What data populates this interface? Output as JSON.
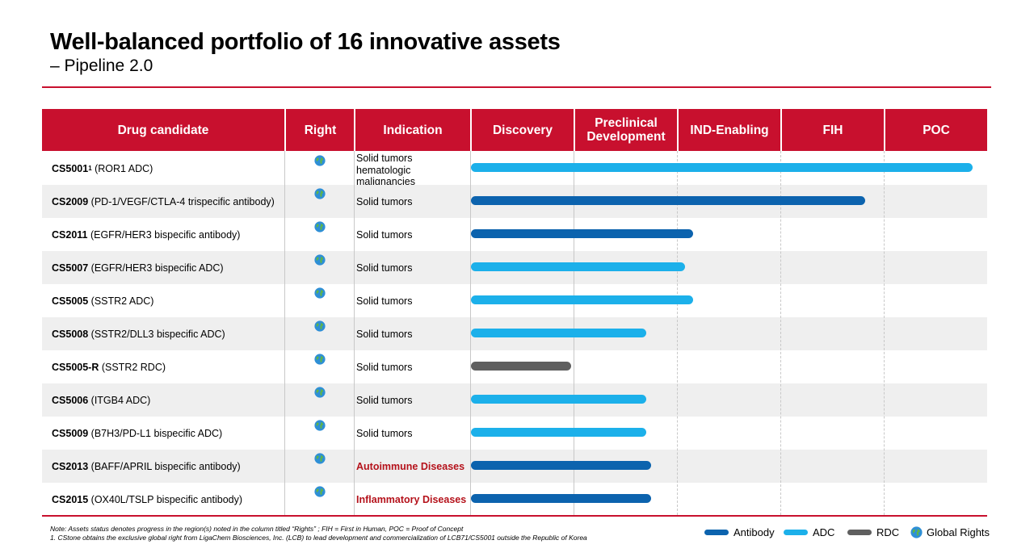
{
  "title": "Well-balanced portfolio of 16 innovative assets",
  "subtitle": "– Pipeline 2.0",
  "headers": {
    "drug": "Drug candidate",
    "right": "Right",
    "indication": "Indication",
    "discovery": "Discovery",
    "preclinical": "Preclinical Development",
    "ind": "IND-Enabling",
    "fih": "FIH",
    "poc": "POC"
  },
  "rows": [
    {
      "code": "CS5001",
      "sup": "1",
      "desc": " (ROR1 ADC)",
      "indication": "Solid tumors hematologic malignancies"
    },
    {
      "code": "CS2009",
      "sup": "",
      "desc": " (PD-1/VEGF/CTLA-4 trispecific antibody)",
      "indication": "Solid tumors"
    },
    {
      "code": "CS2011",
      "sup": "",
      "desc": " (EGFR/HER3 bispecific antibody)",
      "indication": "Solid tumors"
    },
    {
      "code": "CS5007",
      "sup": "",
      "desc": " (EGFR/HER3 bispecific ADC)",
      "indication": "Solid tumors"
    },
    {
      "code": "CS5005",
      "sup": "",
      "desc": " (SSTR2 ADC)",
      "indication": "Solid tumors"
    },
    {
      "code": "CS5008",
      "sup": "",
      "desc": " (SSTR2/DLL3 bispecific ADC)",
      "indication": "Solid tumors"
    },
    {
      "code": "CS5005-R",
      "sup": "",
      "desc": " (SSTR2 RDC)",
      "indication": "Solid tumors"
    },
    {
      "code": "CS5006",
      "sup": "",
      "desc": " (ITGB4 ADC)",
      "indication": "Solid tumors"
    },
    {
      "code": "CS5009",
      "sup": "",
      "desc": " (B7H3/PD-L1 bispecific ADC)",
      "indication": "Solid tumors"
    },
    {
      "code": "CS2013",
      "sup": "",
      "desc": " (BAFF/APRIL bispecific antibody)",
      "indication": "Autoimmune Diseases"
    },
    {
      "code": "CS2015",
      "sup": "",
      "desc": " (OX40L/TSLP bispecific antibody)",
      "indication": "Inflammatory Diseases"
    }
  ],
  "chart_data": {
    "type": "bar",
    "orientation": "horizontal",
    "stages": [
      "Discovery",
      "Preclinical Development",
      "IND-Enabling",
      "FIH",
      "POC"
    ],
    "progress_unit": "stages completed (0-5)",
    "categories": [
      "CS5001",
      "CS2009",
      "CS2011",
      "CS5007",
      "CS5005",
      "CS5008",
      "CS5005-R",
      "CS5006",
      "CS5009",
      "CS2013",
      "CS2015"
    ],
    "values": [
      4.88,
      3.84,
      2.18,
      2.1,
      2.18,
      1.73,
      1.0,
      1.73,
      1.73,
      1.77,
      1.77
    ],
    "modality": [
      "ADC",
      "Antibody",
      "Antibody",
      "ADC",
      "ADC",
      "ADC",
      "RDC",
      "ADC",
      "ADC",
      "Antibody",
      "Antibody"
    ],
    "right": [
      "Global Rights",
      "Global Rights",
      "Global Rights",
      "Global Rights",
      "Global Rights",
      "Global Rights",
      "Global Rights",
      "Global Rights",
      "Global Rights",
      "Global Rights",
      "Global Rights"
    ],
    "colors": {
      "Antibody": "#0c63ae",
      "ADC": "#1cb0ea",
      "RDC": "#5f5f5f",
      "header": "#c8102e",
      "alert": "#b5121b"
    }
  },
  "legend": [
    {
      "label": "Antibody",
      "color": "#0c63ae"
    },
    {
      "label": "ADC",
      "color": "#1cb0ea"
    },
    {
      "label": "RDC",
      "color": "#5f5f5f"
    },
    {
      "label": "Global Rights",
      "icon": "globe-icon"
    }
  ],
  "notes": [
    "Note: Assets status denotes progress in the region(s) noted in the column titled  “Rights” ; FIH = First in Human, POC = Proof of Concept",
    "1. CStone obtains the exclusive global right from LigaChem Biosciences, Inc. (LCB) to lead development and commercialization of LCB71/CS5001 outside the Republic of Korea"
  ]
}
